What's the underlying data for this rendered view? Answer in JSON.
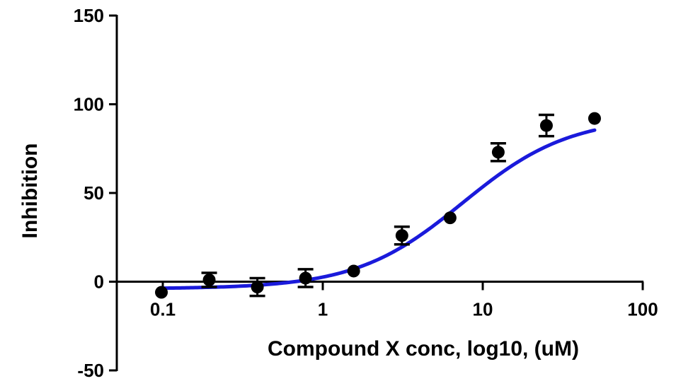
{
  "chart_data": {
    "type": "scatter",
    "title": "",
    "xlabel": "Compound X conc, log10, (uM)",
    "ylabel": "Inhibition",
    "x_scale": "log",
    "xlim": [
      0.1,
      100
    ],
    "ylim": [
      -50,
      150
    ],
    "x_ticks": [
      0.1,
      1,
      10,
      100
    ],
    "x_tick_labels": [
      "0.1",
      "1",
      "10",
      "100"
    ],
    "y_ticks": [
      -50,
      0,
      50,
      100,
      150
    ],
    "y_tick_labels": [
      "-50",
      "0",
      "50",
      "100",
      "150"
    ],
    "grid": false,
    "legend": "none",
    "series": [
      {
        "points": [
          {
            "x": 0.098,
            "y": -6,
            "err": 0
          },
          {
            "x": 0.195,
            "y": 1,
            "err": 4
          },
          {
            "x": 0.39,
            "y": -3,
            "err": 5
          },
          {
            "x": 0.78,
            "y": 2,
            "err": 5
          },
          {
            "x": 1.56,
            "y": 6,
            "err": 0
          },
          {
            "x": 3.125,
            "y": 26,
            "err": 5
          },
          {
            "x": 6.25,
            "y": 36,
            "err": 0
          },
          {
            "x": 12.5,
            "y": 73,
            "err": 5
          },
          {
            "x": 25,
            "y": 88,
            "err": 6
          },
          {
            "x": 50,
            "y": 92,
            "err": 0
          }
        ],
        "color": "#000000"
      }
    ],
    "fit_curve": {
      "model": "four-parameter logistic",
      "bottom": -4,
      "top": 93,
      "ic50": 7.5,
      "hill": 1.3,
      "x_range": [
        0.1,
        50
      ],
      "color": "#1a1adb"
    }
  }
}
